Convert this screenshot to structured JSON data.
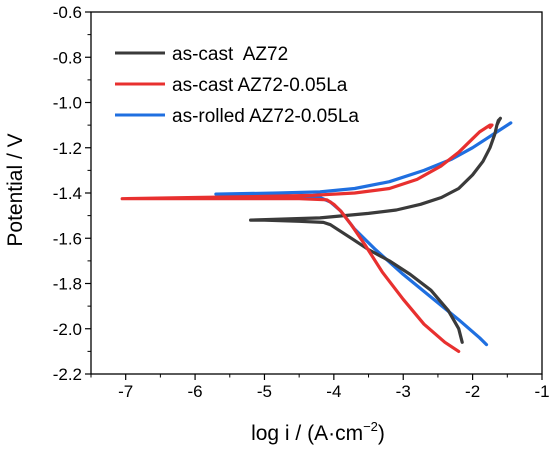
{
  "chart_data": {
    "type": "line",
    "xlabel_main": "log i / (A·cm",
    "xlabel_sup": "−2",
    "xlabel_close": ")",
    "ylabel": "Potential / V",
    "xlim": [
      -7.5,
      -1
    ],
    "ylim": [
      -2.2,
      -0.6
    ],
    "xticks": [
      -7,
      -6,
      -5,
      -4,
      -3,
      -2,
      -1
    ],
    "yticks": [
      -2.2,
      -2.0,
      -1.8,
      -1.6,
      -1.4,
      -1.2,
      -1.0,
      -0.8,
      -0.6
    ],
    "xtick_labels": [
      "-7",
      "-6",
      "-5",
      "-4",
      "-3",
      "-2",
      "-1"
    ],
    "ytick_labels": [
      "-2.2",
      "-2.0",
      "-1.8",
      "-1.6",
      "-1.4",
      "-1.2",
      "-1.0",
      "-0.8",
      "-0.6"
    ],
    "legend_position": "top-left",
    "series": [
      {
        "name": "as-cast  AZ72",
        "color": "#3a3a3a",
        "x": [
          -2.15,
          -2.2,
          -2.35,
          -2.6,
          -2.9,
          -3.2,
          -3.5,
          -3.75,
          -3.95,
          -4.05,
          -4.15,
          -4.5,
          -5.0,
          -5.2,
          -4.7,
          -4.2,
          -3.85,
          -3.5,
          -3.1,
          -2.75,
          -2.45,
          -2.2,
          -2.0,
          -1.85,
          -1.75,
          -1.68,
          -1.65,
          -1.63,
          -1.6,
          -1.62,
          -1.65
        ],
        "y": [
          -2.06,
          -2.0,
          -1.92,
          -1.83,
          -1.76,
          -1.7,
          -1.65,
          -1.6,
          -1.56,
          -1.54,
          -1.53,
          -1.525,
          -1.52,
          -1.52,
          -1.515,
          -1.51,
          -1.5,
          -1.49,
          -1.475,
          -1.45,
          -1.42,
          -1.38,
          -1.32,
          -1.26,
          -1.2,
          -1.14,
          -1.1,
          -1.08,
          -1.07,
          -1.08,
          -1.1
        ]
      },
      {
        "name": "as-cast AZ72-0.05La",
        "color": "#e8302f",
        "x": [
          -2.2,
          -2.4,
          -2.7,
          -3.0,
          -3.3,
          -3.55,
          -3.75,
          -3.9,
          -4.0,
          -4.1,
          -4.5,
          -5.5,
          -6.5,
          -7.05,
          -6.0,
          -5.0,
          -4.3,
          -3.7,
          -3.2,
          -2.8,
          -2.45,
          -2.2,
          -2.0,
          -1.9,
          -1.8,
          -1.75,
          -1.72,
          -1.75
        ],
        "y": [
          -2.1,
          -2.06,
          -1.98,
          -1.87,
          -1.75,
          -1.63,
          -1.54,
          -1.48,
          -1.45,
          -1.43,
          -1.425,
          -1.425,
          -1.425,
          -1.425,
          -1.42,
          -1.415,
          -1.41,
          -1.4,
          -1.38,
          -1.34,
          -1.28,
          -1.22,
          -1.16,
          -1.13,
          -1.11,
          -1.1,
          -1.1,
          -1.11
        ]
      },
      {
        "name": "as-rolled AZ72-0.05La",
        "color": "#1f6fe0",
        "x": [
          -1.8,
          -1.9,
          -2.2,
          -2.6,
          -3.0,
          -3.4,
          -3.7,
          -3.9,
          -4.05,
          -4.2,
          -4.8,
          -5.7,
          -4.8,
          -4.2,
          -3.7,
          -3.2,
          -2.7,
          -2.3,
          -2.0,
          -1.8,
          -1.6,
          -1.45
        ],
        "y": [
          -2.07,
          -2.04,
          -1.96,
          -1.86,
          -1.76,
          -1.65,
          -1.56,
          -1.48,
          -1.44,
          -1.42,
          -1.41,
          -1.405,
          -1.4,
          -1.395,
          -1.38,
          -1.35,
          -1.3,
          -1.25,
          -1.2,
          -1.16,
          -1.12,
          -1.09
        ]
      }
    ]
  }
}
